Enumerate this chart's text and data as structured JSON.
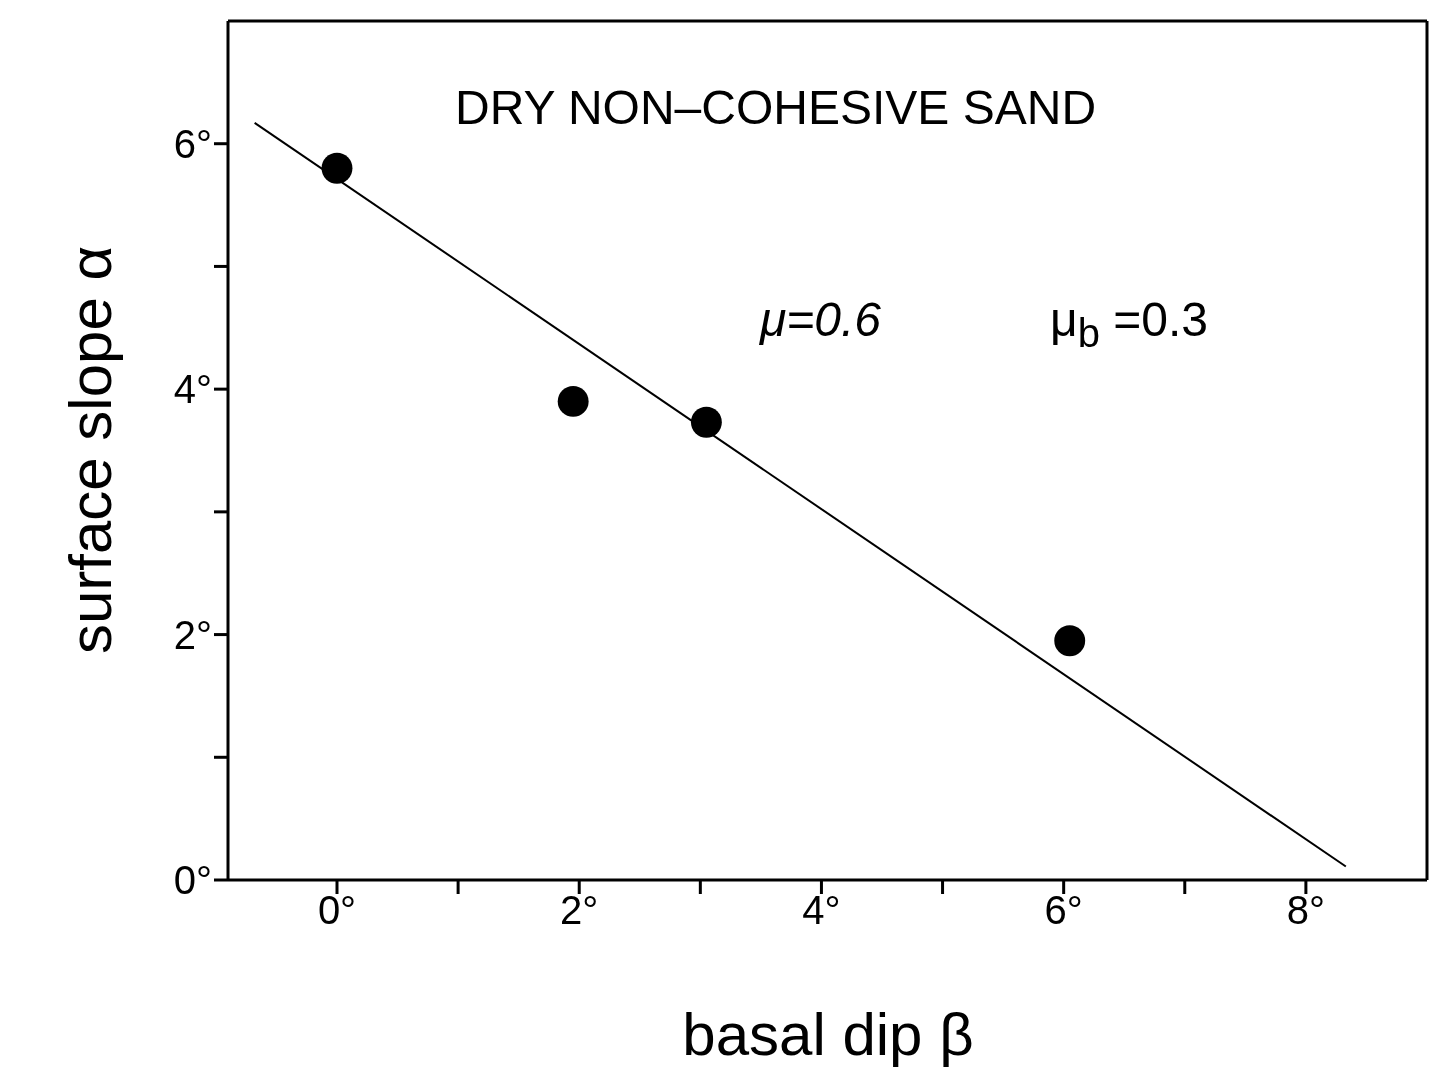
{
  "chart_data": {
    "type": "scatter",
    "xlabel": "basal dip β",
    "ylabel": "surface slope α",
    "annotations": [
      "DRY NON–COHESIVE SAND",
      "μ=0.6",
      "μ$_{b}$ =0.3"
    ],
    "xlim": [
      -0.9,
      9
    ],
    "ylim": [
      0,
      7
    ],
    "xticks": [
      {
        "value": 0,
        "label": "0°"
      },
      {
        "value": 1,
        "label": null
      },
      {
        "value": 2,
        "label": "2°"
      },
      {
        "value": 3,
        "label": null
      },
      {
        "value": 4,
        "label": "4°"
      },
      {
        "value": 5,
        "label": null
      },
      {
        "value": 6,
        "label": "6°"
      },
      {
        "value": 7,
        "label": null
      },
      {
        "value": 8,
        "label": "8°"
      }
    ],
    "yticks": [
      {
        "value": 0,
        "label": "0°"
      },
      {
        "value": 1,
        "label": null
      },
      {
        "value": 2,
        "label": "2°"
      },
      {
        "value": 3,
        "label": null
      },
      {
        "value": 4,
        "label": "4°"
      },
      {
        "value": 5,
        "label": null
      },
      {
        "value": 6,
        "label": "6°"
      }
    ],
    "series": [
      {
        "marker": "circle",
        "color": "#000000",
        "x": [
          0,
          1.95,
          3.05,
          6.05
        ],
        "values": [
          5.8,
          3.9,
          3.73,
          1.95
        ]
      },
      {
        "type": "line",
        "color": "#000000",
        "line_style": "solid",
        "x": [
          -0.68,
          8.33
        ],
        "values": [
          6.17,
          0.11
        ]
      }
    ]
  }
}
